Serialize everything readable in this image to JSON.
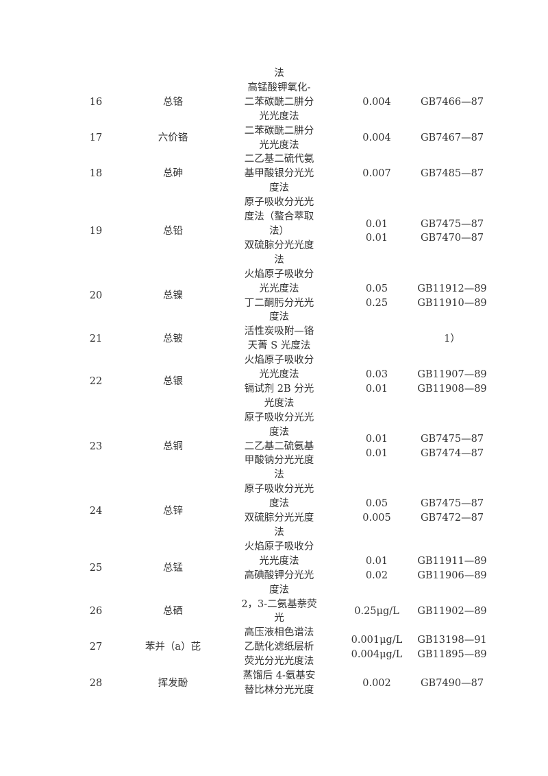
{
  "carryover_line": "法",
  "rows": [
    {
      "no": "16",
      "item": "总铬",
      "method": [
        "高锰酸钾氧化-",
        "二苯碳酰二肼分",
        "光光度法"
      ],
      "limit": [
        "0.004"
      ],
      "standard": [
        "GB7466—87"
      ]
    },
    {
      "no": "17",
      "item": "六价铬",
      "method": [
        "二苯碳酰二肼分",
        "光光度法"
      ],
      "limit": [
        "0.004"
      ],
      "standard": [
        "GB7467—87"
      ]
    },
    {
      "no": "18",
      "item": "总砷",
      "method": [
        "二乙基二硫代氨",
        "基甲酸银分光光",
        "度法"
      ],
      "limit": [
        "0.007"
      ],
      "standard": [
        "GB7485—87"
      ]
    },
    {
      "no": "19",
      "item": "总铅",
      "method": [
        "原子吸收分光光",
        "度法（螯合萃取",
        "法）",
        "双硫腙分光光度",
        "法"
      ],
      "limit": [
        "0.01",
        "0.01"
      ],
      "standard": [
        "GB7475—87",
        "GB7470—87"
      ]
    },
    {
      "no": "20",
      "item": "总镍",
      "method": [
        "火焰原子吸收分",
        "光光度法",
        "丁二酮肟分光光",
        "度法"
      ],
      "limit": [
        "0.05",
        "0.25"
      ],
      "standard": [
        "GB11912—89",
        "GB11910—89"
      ]
    },
    {
      "no": "21",
      "item": "总铍",
      "method": [
        "活性炭吸附—铬",
        "天菁 S 光度法"
      ],
      "limit": [],
      "standard": [
        "1）"
      ]
    },
    {
      "no": "22",
      "item": "总银",
      "method": [
        "火焰原子吸收分",
        "光光度法",
        "镉试剂 2B 分光",
        "光度法"
      ],
      "limit": [
        "0.03",
        "0.01"
      ],
      "standard": [
        "GB11907—89",
        "GB11908—89"
      ]
    },
    {
      "no": "23",
      "item": "总铜",
      "method": [
        "原子吸收分光光",
        "度法",
        "二乙基二硫氨基",
        "甲酸钠分光光度",
        "法"
      ],
      "limit": [
        "0.01",
        "0.01"
      ],
      "standard": [
        "GB7475—87",
        "GB7474—87"
      ]
    },
    {
      "no": "24",
      "item": "总锌",
      "method": [
        "原子吸收分光光",
        "度法",
        "双硫腙分光光度",
        "法"
      ],
      "limit": [
        "0.05",
        "0.005"
      ],
      "standard": [
        "GB7475—87",
        "GB7472—87"
      ]
    },
    {
      "no": "25",
      "item": "总锰",
      "method": [
        "火焰原子吸收分",
        "光光度法",
        "高碘酸钾分光光",
        "度法"
      ],
      "limit": [
        "0.01",
        "0.02"
      ],
      "standard": [
        "GB11911—89",
        "GB11906—89"
      ]
    },
    {
      "no": "26",
      "item": "总硒",
      "method": [
        "2，3-二氨基萘荧",
        "光"
      ],
      "limit": [
        "0.25μg/L"
      ],
      "standard": [
        "GB11902—89"
      ]
    },
    {
      "no": "27",
      "item": "苯并（a）芘",
      "method": [
        "高压液相色谱法",
        "乙酰化滤纸层析",
        "荧光分光光度法"
      ],
      "limit": [
        "0.001μg/L",
        "0.004μg/L"
      ],
      "standard": [
        "GB13198—91",
        "GB11895—89"
      ]
    },
    {
      "no": "28",
      "item": "挥发酚",
      "method": [
        "蒸馏后 4-氨基安",
        "替比林分光光度"
      ],
      "limit": [
        "0.002"
      ],
      "standard": [
        "GB7490—87"
      ]
    }
  ]
}
